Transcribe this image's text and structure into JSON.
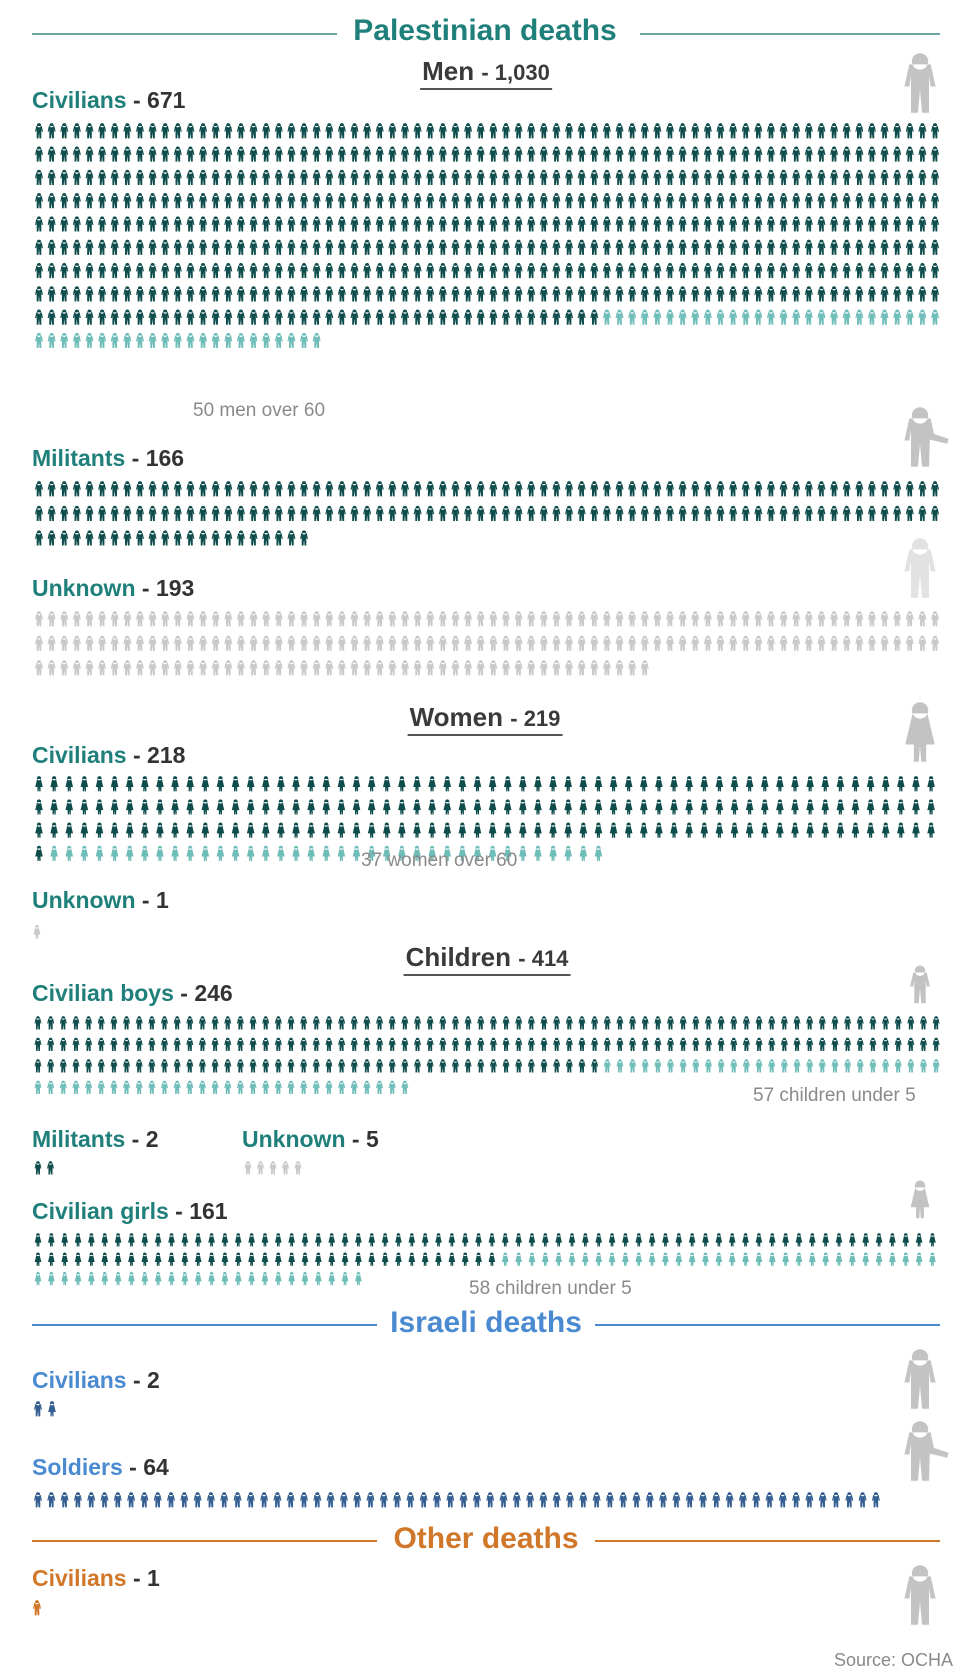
{
  "colors": {
    "palestinian_accent": "#1f7f7a",
    "israeli_accent": "#4a8ad0",
    "other_accent": "#d0772a",
    "dark_teal": "#0f4d4c",
    "light_teal": "#6fbdb9",
    "grey": "#c9c9c9",
    "israeli_icon": "#355f91",
    "other_icon": "#d0772a",
    "legend_icon": "#c3c3c3"
  },
  "sections": {
    "palestinian": "Palestinian deaths",
    "israeli": "Israeli deaths",
    "other": "Other deaths"
  },
  "groups": {
    "men": {
      "label": "Men",
      "count": "- 1,030"
    },
    "women": {
      "label": "Women",
      "count": "- 219"
    },
    "children": {
      "label": "Children",
      "count": "- 414"
    }
  },
  "chart_data": {
    "type": "pictogram",
    "unit": "one figure = one death",
    "categories": [
      {
        "key": "men_civilians",
        "label": "Civilians",
        "count_text": "- 671",
        "value": 671,
        "sub_value": 50,
        "note": "50 men over 60",
        "icon": "man-figure-icon"
      },
      {
        "key": "men_militants",
        "label": "Militants",
        "count_text": "- 166",
        "value": 166,
        "icon": "man-figure-icon"
      },
      {
        "key": "men_unknown",
        "label": "Unknown",
        "count_text": "- 193",
        "value": 193,
        "icon": "man-figure-icon"
      },
      {
        "key": "women_civilians",
        "label": "Civilians",
        "count_text": "- 218",
        "value": 218,
        "sub_value": 37,
        "note": "37 women over 60",
        "icon": "woman-figure-icon"
      },
      {
        "key": "women_unknown",
        "label": "Unknown",
        "count_text": "- 1",
        "value": 1,
        "icon": "woman-figure-icon"
      },
      {
        "key": "civilian_boys",
        "label": "Civilian boys",
        "count_text": "- 246",
        "value": 246,
        "sub_value": 57,
        "note": "57 children under 5",
        "icon": "boy-figure-icon"
      },
      {
        "key": "child_militants",
        "label": "Militants",
        "count_text": "- 2",
        "value": 2,
        "icon": "boy-figure-icon"
      },
      {
        "key": "child_unknown",
        "label": "Unknown",
        "count_text": "- 5",
        "value": 5,
        "icon": "child-figure-icon"
      },
      {
        "key": "civilian_girls",
        "label": "Civilian girls",
        "count_text": "- 161",
        "value": 161,
        "sub_value": 58,
        "note": "58 children under 5",
        "icon": "girl-figure-icon"
      },
      {
        "key": "israeli_civilians",
        "label": "Civilians",
        "count_text": "- 2",
        "value": 2,
        "icon": "adult-figure-icon"
      },
      {
        "key": "israeli_soldiers",
        "label": "Soldiers",
        "count_text": "- 64",
        "value": 64,
        "icon": "soldier-figure-icon"
      },
      {
        "key": "other_civilians",
        "label": "Civilians",
        "count_text": "- 1",
        "value": 1,
        "icon": "man-figure-icon"
      }
    ]
  },
  "source": "Source: OCHA"
}
